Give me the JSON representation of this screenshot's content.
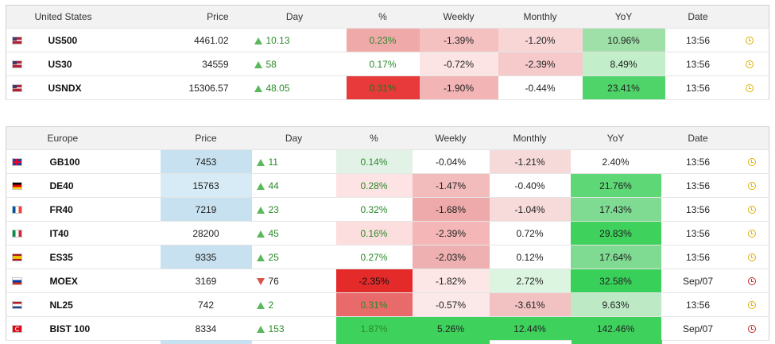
{
  "us": {
    "headers": {
      "region": "United States",
      "price": "Price",
      "day": "Day",
      "pct": "%",
      "weekly": "Weekly",
      "monthly": "Monthly",
      "yoy": "YoY",
      "date": "Date"
    },
    "rows": [
      {
        "flag": "us",
        "symbol": "US500",
        "price": "4461.02",
        "day": "10.13",
        "dir": "up",
        "pct": "0.23%",
        "weekly": "-1.39%",
        "monthly": "-1.20%",
        "yoy": "10.96%",
        "date": "13:56",
        "status": "open",
        "colors": {
          "pct": "#f0a9a9",
          "weekly": "#f4c0c0",
          "monthly": "#f8d6d6",
          "yoy": "#9ee0a8"
        }
      },
      {
        "flag": "us",
        "symbol": "US30",
        "price": "34559",
        "day": "58",
        "dir": "up",
        "pct": "0.17%",
        "weekly": "-0.72%",
        "monthly": "-2.39%",
        "yoy": "8.49%",
        "date": "13:56",
        "status": "open",
        "colors": {
          "pct": "#ffffff",
          "weekly": "#fde4e4",
          "monthly": "#f6caca",
          "yoy": "#c2efc9"
        }
      },
      {
        "flag": "us",
        "symbol": "USNDX",
        "price": "15306.57",
        "day": "48.05",
        "dir": "up",
        "pct": "0.31%",
        "weekly": "-1.90%",
        "monthly": "-0.44%",
        "yoy": "23.41%",
        "date": "13:56",
        "status": "open",
        "colors": {
          "pct": "#e83a3a",
          "weekly": "#f2b4b4",
          "monthly": "#ffffff",
          "yoy": "#4fd46a"
        }
      }
    ]
  },
  "eu": {
    "headers": {
      "region": "Europe",
      "price": "Price",
      "day": "Day",
      "pct": "%",
      "weekly": "Weekly",
      "monthly": "Monthly",
      "yoy": "YoY",
      "date": "Date"
    },
    "rows": [
      {
        "flag": "gb",
        "symbol": "GB100",
        "price": "7453",
        "day": "11",
        "dir": "up",
        "pct": "0.14%",
        "weekly": "-0.04%",
        "monthly": "-1.21%",
        "yoy": "2.40%",
        "date": "13:56",
        "status": "open",
        "colors": {
          "price": "#c7e1f0",
          "pct": "#e3f2e6",
          "weekly": "#ffffff",
          "monthly": "#f6dada",
          "yoy": "#ffffff"
        }
      },
      {
        "flag": "de",
        "symbol": "DE40",
        "price": "15763",
        "day": "44",
        "dir": "up",
        "pct": "0.28%",
        "weekly": "-1.47%",
        "monthly": "-0.40%",
        "yoy": "21.76%",
        "date": "13:56",
        "status": "open",
        "colors": {
          "price": "#d6ebf5",
          "pct": "#fde3e3",
          "weekly": "#f3bcbc",
          "monthly": "#ffffff",
          "yoy": "#5ed776"
        }
      },
      {
        "flag": "fr",
        "symbol": "FR40",
        "price": "7219",
        "day": "23",
        "dir": "up",
        "pct": "0.32%",
        "weekly": "-1.68%",
        "monthly": "-1.04%",
        "yoy": "17.43%",
        "date": "13:56",
        "status": "open",
        "colors": {
          "price": "#c7e1f0",
          "pct": "#ffffff",
          "weekly": "#eeaaaa",
          "monthly": "#f7dada",
          "yoy": "#7fdb91"
        }
      },
      {
        "flag": "it",
        "symbol": "IT40",
        "price": "28200",
        "day": "45",
        "dir": "up",
        "pct": "0.16%",
        "weekly": "-2.39%",
        "monthly": "0.72%",
        "yoy": "29.83%",
        "date": "13:56",
        "status": "open",
        "colors": {
          "price": "#ffffff",
          "pct": "#fcdede",
          "weekly": "#f4b6b6",
          "monthly": "#ffffff",
          "yoy": "#3ed15c"
        }
      },
      {
        "flag": "es",
        "symbol": "ES35",
        "price": "9335",
        "day": "25",
        "dir": "up",
        "pct": "0.27%",
        "weekly": "-2.03%",
        "monthly": "0.12%",
        "yoy": "17.64%",
        "date": "13:56",
        "status": "open",
        "colors": {
          "price": "#c7e1f0",
          "pct": "#ffffff",
          "weekly": "#eeb0b0",
          "monthly": "#ffffff",
          "yoy": "#7fdb91"
        }
      },
      {
        "flag": "ru",
        "symbol": "MOEX",
        "price": "3169",
        "day": "76",
        "dir": "down",
        "pct": "-2.35%",
        "weekly": "-1.82%",
        "monthly": "2.72%",
        "yoy": "32.58%",
        "date": "Sep/07",
        "status": "closed",
        "colors": {
          "price": "#ffffff",
          "pct": "#e52a2a",
          "weekly": "#fde6e6",
          "monthly": "#dcf5e0",
          "yoy": "#39d059"
        }
      },
      {
        "flag": "nl",
        "symbol": "NL25",
        "price": "742",
        "day": "2",
        "dir": "up",
        "pct": "0.31%",
        "weekly": "-0.57%",
        "monthly": "-3.61%",
        "yoy": "9.63%",
        "date": "13:56",
        "status": "open",
        "colors": {
          "price": "#ffffff",
          "pct": "#e96a6a",
          "weekly": "#fbe9e9",
          "monthly": "#f2c2c2",
          "yoy": "#bde9c5"
        }
      },
      {
        "flag": "tr",
        "symbol": "BIST 100",
        "price": "8334",
        "day": "153",
        "dir": "up",
        "pct": "1.87%",
        "weekly": "5.26%",
        "monthly": "12.44%",
        "yoy": "142.46%",
        "date": "Sep/07",
        "status": "closed",
        "colors": {
          "price": "#ffffff",
          "pct": "#3ed15c",
          "weekly": "#3ed15c",
          "monthly": "#3ed15c",
          "yoy": "#3ed15c"
        }
      }
    ]
  },
  "icons": {
    "clock_open": "clock-icon",
    "clock_closed": "clock-closed-icon"
  }
}
